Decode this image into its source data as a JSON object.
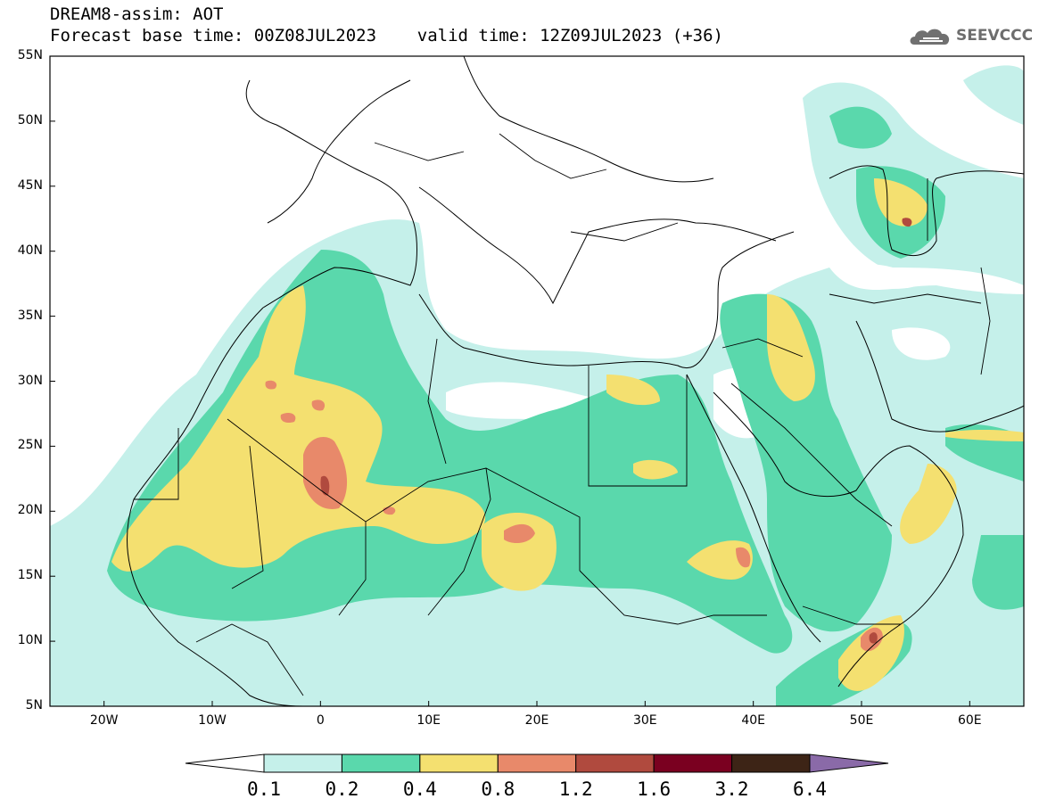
{
  "title": {
    "line1": "DREAM8-assim: AOT",
    "line2": "Forecast base time: 00Z08JUL2023    valid time: 12Z09JUL2023 (+36)"
  },
  "logo": {
    "text": "SEEVCCC",
    "icon": "cloud-icon"
  },
  "map": {
    "variable": "AOT",
    "lon_range": [
      -25,
      65
    ],
    "lat_range": [
      5,
      55
    ],
    "lat_ticks": [
      {
        "value": 55,
        "label": "55N"
      },
      {
        "value": 50,
        "label": "50N"
      },
      {
        "value": 45,
        "label": "45N"
      },
      {
        "value": 40,
        "label": "40N"
      },
      {
        "value": 35,
        "label": "35N"
      },
      {
        "value": 30,
        "label": "30N"
      },
      {
        "value": 25,
        "label": "25N"
      },
      {
        "value": 20,
        "label": "20N"
      },
      {
        "value": 15,
        "label": "15N"
      },
      {
        "value": 10,
        "label": "10N"
      },
      {
        "value": 5,
        "label": "5N"
      }
    ],
    "lon_ticks": [
      {
        "value": -20,
        "label": "20W"
      },
      {
        "value": -10,
        "label": "10W"
      },
      {
        "value": 0,
        "label": "0"
      },
      {
        "value": 10,
        "label": "10E"
      },
      {
        "value": 20,
        "label": "20E"
      },
      {
        "value": 30,
        "label": "30E"
      },
      {
        "value": 40,
        "label": "40E"
      },
      {
        "value": 50,
        "label": "50E"
      },
      {
        "value": 60,
        "label": "60E"
      }
    ]
  },
  "colorbar": {
    "levels": [
      "0.1",
      "0.2",
      "0.4",
      "0.8",
      "1.2",
      "1.6",
      "3.2",
      "6.4"
    ],
    "colors": [
      "#c5f0ea",
      "#5ad8ac",
      "#f4e070",
      "#e8896a",
      "#b04a3e",
      "#7a0020",
      "#3d2416"
    ],
    "under_color": "#ffffff",
    "over_color": "#8a6aa8"
  }
}
